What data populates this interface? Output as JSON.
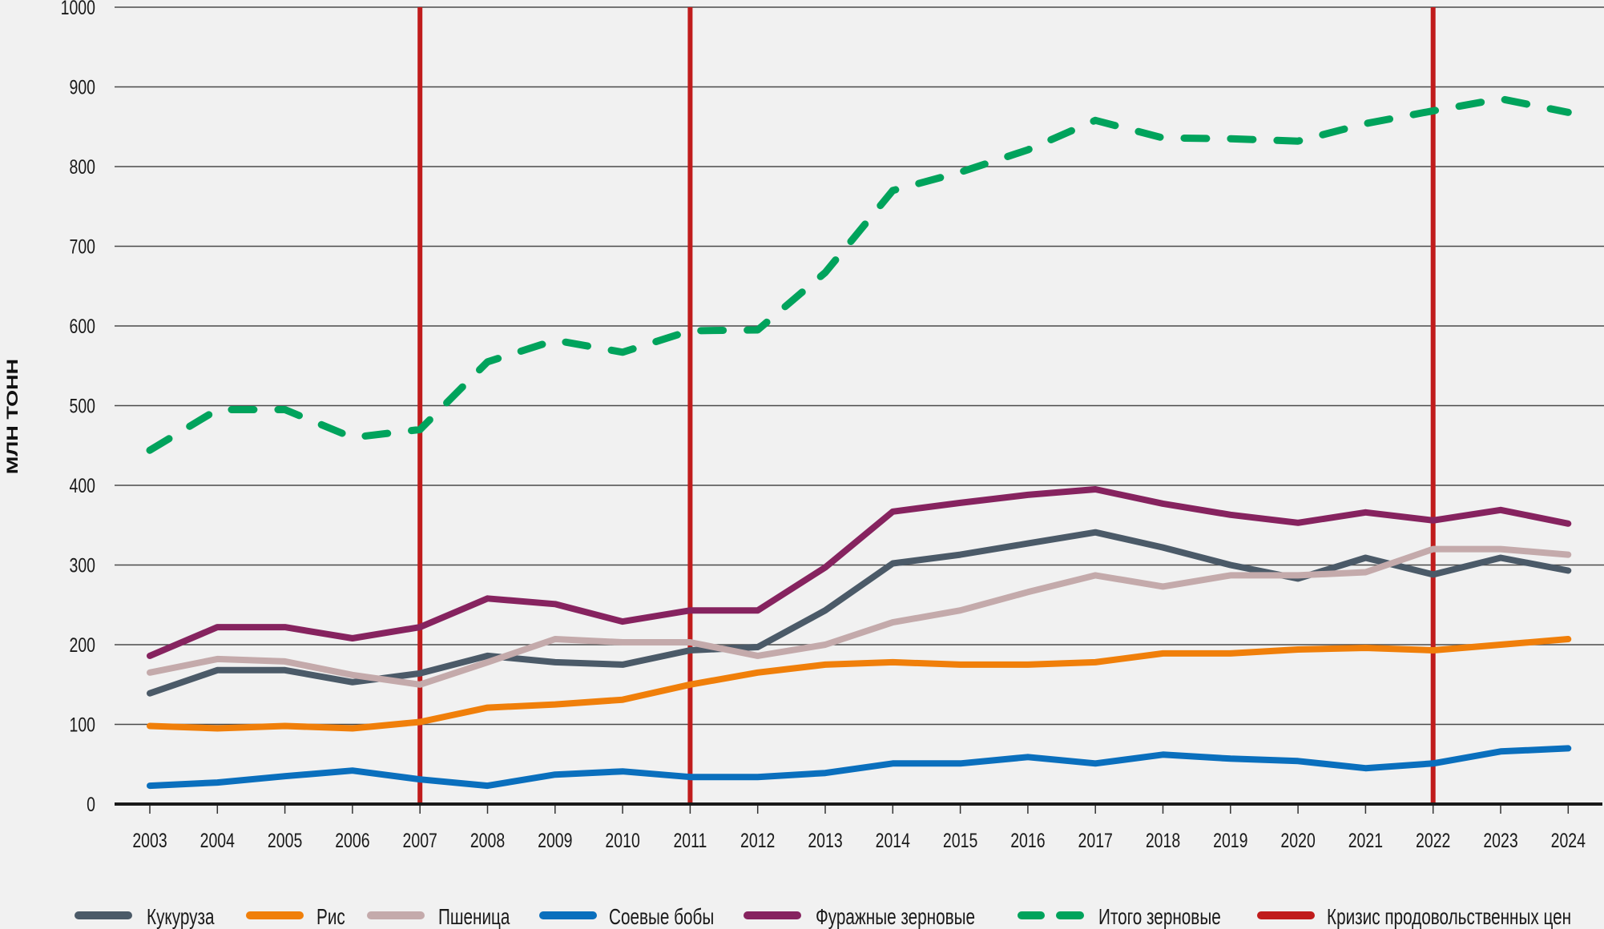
{
  "chart_data": {
    "type": "line",
    "title": "",
    "xlabel": "",
    "ylabel": "МЛН ТОНН",
    "ylim": [
      0,
      1000
    ],
    "yticks": [
      "0",
      "100",
      "200",
      "300",
      "400",
      "500",
      "600",
      "700",
      "800",
      "900",
      "1000"
    ],
    "grid": true,
    "legend_position": "bottom",
    "x": [
      "2003",
      "2004",
      "2005",
      "2006",
      "2007",
      "2008",
      "2009",
      "2010",
      "2011",
      "2012",
      "2013",
      "2014",
      "2015",
      "2016",
      "2017",
      "2018",
      "2019",
      "2020",
      "2021",
      "2022",
      "2023",
      "2024"
    ],
    "series": [
      {
        "name": "Кукуруза",
        "color": "#4b5a68",
        "dash": false,
        "values": [
          139,
          168,
          168,
          153,
          164,
          186,
          178,
          175,
          193,
          197,
          243,
          302,
          313,
          327,
          341,
          322,
          300,
          283,
          309,
          288,
          309,
          293
        ]
      },
      {
        "name": "Рис",
        "color": "#f07f0a",
        "dash": false,
        "values": [
          98,
          95,
          98,
          95,
          103,
          121,
          125,
          131,
          150,
          165,
          175,
          178,
          175,
          175,
          178,
          189,
          189,
          194,
          196,
          193,
          200,
          207
        ]
      },
      {
        "name": "Пшеница",
        "color": "#c4aaab",
        "dash": false,
        "values": [
          165,
          182,
          179,
          162,
          150,
          178,
          207,
          203,
          203,
          186,
          200,
          228,
          243,
          266,
          287,
          273,
          287,
          287,
          291,
          320,
          320,
          313
        ]
      },
      {
        "name": "Соевые бобы",
        "color": "#0a6fbd",
        "dash": false,
        "values": [
          23,
          27,
          35,
          42,
          31,
          23,
          37,
          41,
          34,
          34,
          39,
          51,
          51,
          59,
          51,
          62,
          57,
          54,
          45,
          51,
          66,
          70
        ]
      },
      {
        "name": "Фуражные зерновые",
        "color": "#86235f",
        "dash": false,
        "values": [
          186,
          222,
          222,
          208,
          222,
          258,
          251,
          229,
          243,
          243,
          297,
          367,
          378,
          388,
          395,
          377,
          363,
          353,
          366,
          356,
          369,
          352
        ]
      },
      {
        "name": "Итого зерновые",
        "color": "#00a35c",
        "dash": true,
        "values": [
          444,
          495,
          495,
          460,
          470,
          555,
          582,
          567,
          594,
          595,
          667,
          770,
          793,
          821,
          858,
          836,
          835,
          832,
          854,
          870,
          885,
          868
        ]
      }
    ],
    "vertical_markers": {
      "name": "Кризис продовольственных цен",
      "color": "#c01c1c",
      "years": [
        "2007",
        "2011",
        "2022"
      ]
    },
    "legend": [
      {
        "label": "Кукуруза",
        "color": "#4b5a68",
        "dash": false
      },
      {
        "label": "Рис",
        "color": "#f07f0a",
        "dash": false
      },
      {
        "label": "Пшеница",
        "color": "#c4aaab",
        "dash": false
      },
      {
        "label": "Соевые бобы",
        "color": "#0a6fbd",
        "dash": false
      },
      {
        "label": "Фуражные зерновые",
        "color": "#86235f",
        "dash": false
      },
      {
        "label": "Итого зерновые",
        "color": "#00a35c",
        "dash": true
      },
      {
        "label": "Кризис продовольственных цен",
        "color": "#c01c1c",
        "dash": false
      }
    ]
  }
}
